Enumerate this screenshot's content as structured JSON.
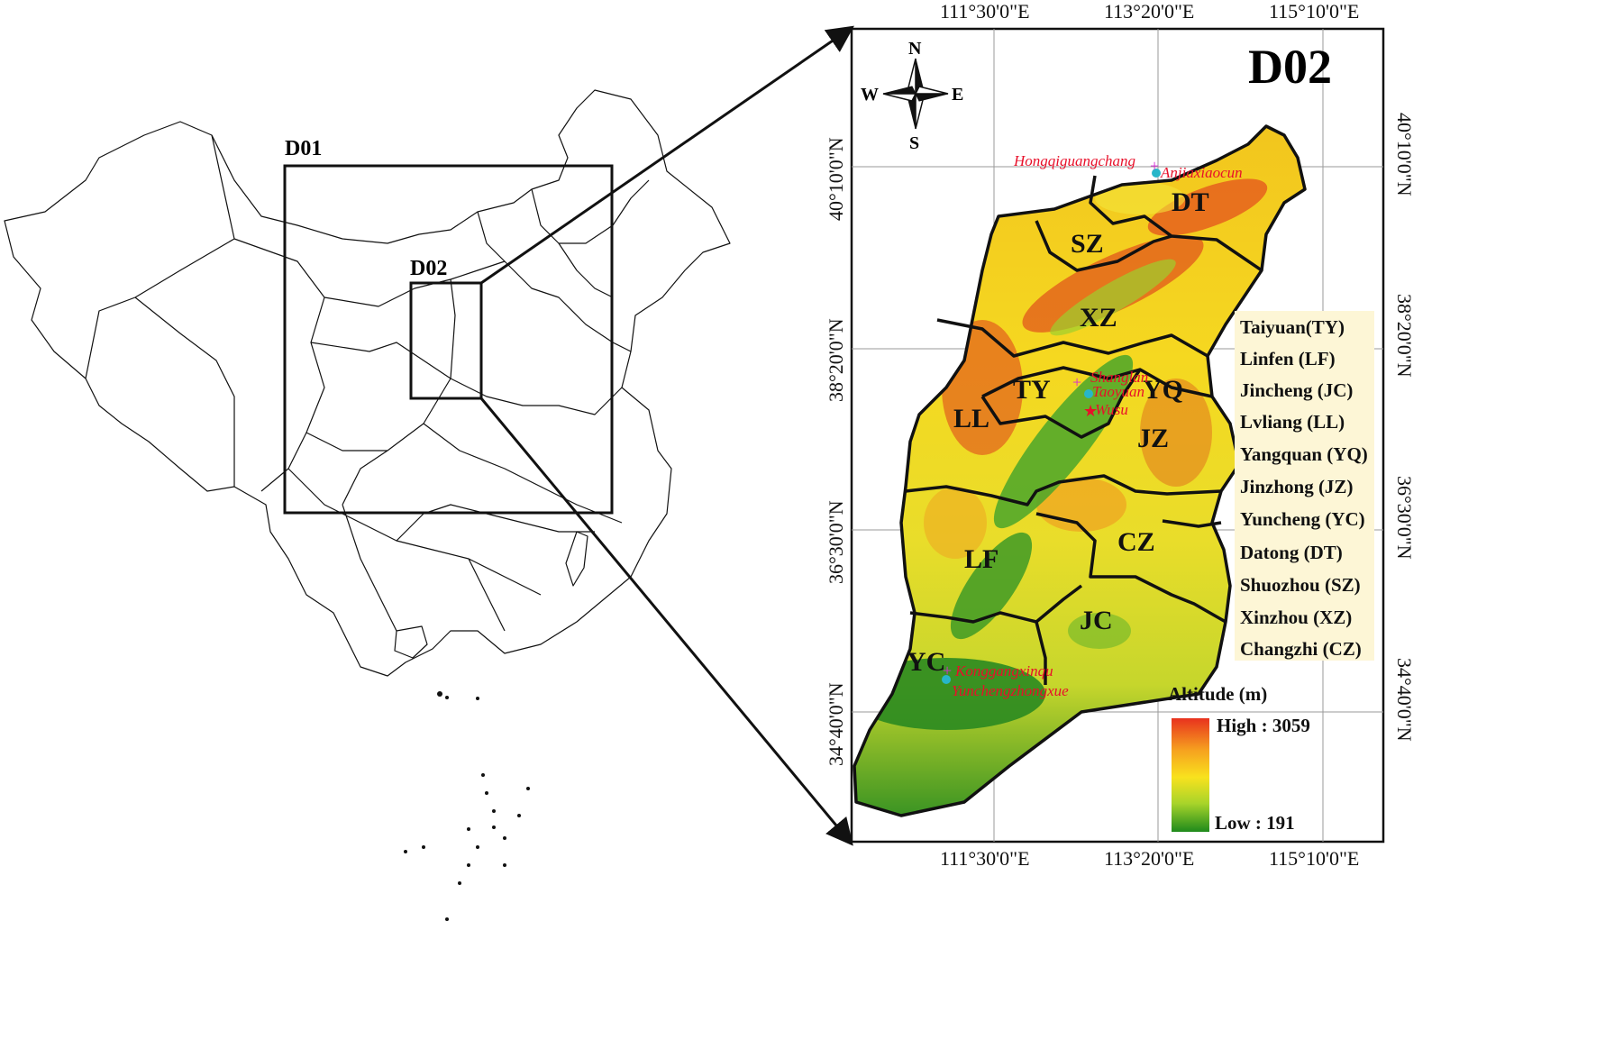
{
  "overview": {
    "domain1_label": "D01",
    "domain2_label": "D02"
  },
  "detail": {
    "title": "D02",
    "compass": {
      "n": "N",
      "s": "S",
      "e": "E",
      "w": "W"
    },
    "lon_ticks_top": [
      "111°30'0\"E",
      "113°20'0\"E",
      "115°10'0\"E"
    ],
    "lon_ticks_bottom": [
      "111°30'0\"E",
      "113°20'0\"E",
      "115°10'0\"E"
    ],
    "lat_ticks_left": [
      "40°10'0\"N",
      "38°20'0\"N",
      "36°30'0\"N",
      "34°40'0\"N"
    ],
    "lat_ticks_right": [
      "40°10'0\"N",
      "38°20'0\"N",
      "36°30'0\"N",
      "34°40'0\"N"
    ],
    "city_codes": [
      "DT",
      "SZ",
      "XZ",
      "YQ",
      "TY",
      "LL",
      "JZ",
      "CZ",
      "LF",
      "JC",
      "YC"
    ],
    "sites": [
      "Hongqiguangchang",
      "Anjiaxiaocun",
      "Shanglan",
      "Taoyuan",
      "Wusu",
      "Konggangxinqu",
      "Yunchengzhongxue"
    ],
    "city_legend": [
      "Taiyuan(TY)",
      "Linfen (LF)",
      "Jincheng (JC)",
      "Lvliang (LL)",
      "Yangquan (YQ)",
      "Jinzhong (JZ)",
      "Yuncheng (YC)",
      "Datong (DT)",
      "Shuozhou (SZ)",
      "Xinzhou (XZ)",
      "Changzhi (CZ)"
    ],
    "altitude_legend": {
      "title": "Altitude (m)",
      "high_label": "High : 3059",
      "low_label": "Low : 191",
      "high_value": 3059,
      "low_value": 191,
      "unit": "m",
      "colors": [
        "#e8321e",
        "#f6a11f",
        "#f8e21e",
        "#a8d42a",
        "#1f8a1c"
      ]
    }
  }
}
